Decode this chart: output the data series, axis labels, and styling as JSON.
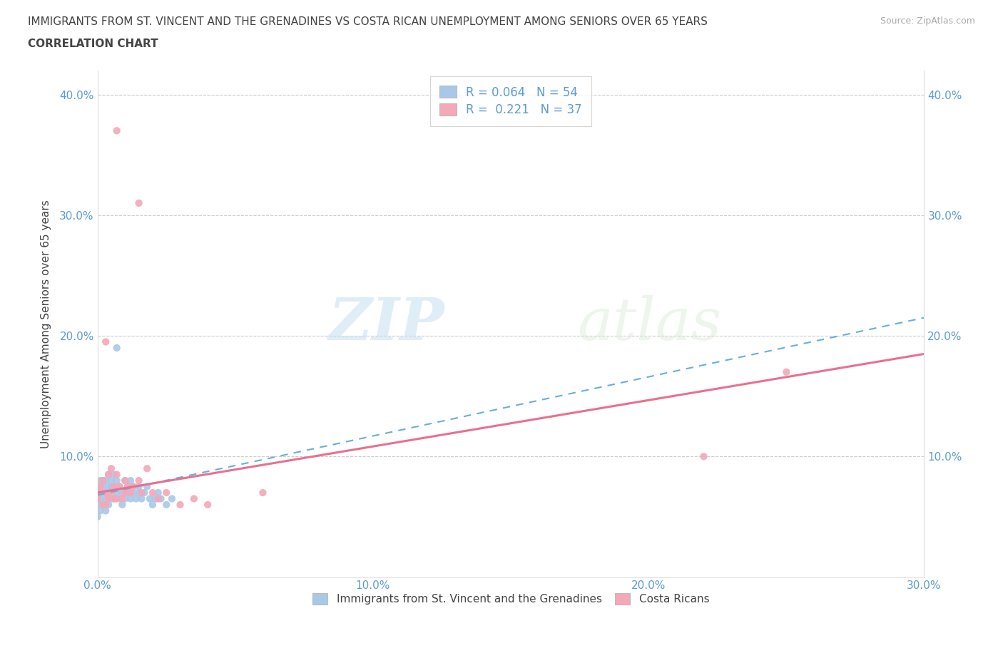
{
  "title_line1": "IMMIGRANTS FROM ST. VINCENT AND THE GRENADINES VS COSTA RICAN UNEMPLOYMENT AMONG SENIORS OVER 65 YEARS",
  "title_line2": "CORRELATION CHART",
  "source_text": "Source: ZipAtlas.com",
  "ylabel": "Unemployment Among Seniors over 65 years",
  "xlim": [
    0.0,
    0.3
  ],
  "ylim": [
    0.0,
    0.42
  ],
  "xticks": [
    0.0,
    0.1,
    0.2,
    0.3
  ],
  "yticks": [
    0.0,
    0.1,
    0.2,
    0.3,
    0.4
  ],
  "xtick_labels": [
    "0.0%",
    "10.0%",
    "20.0%",
    "30.0%"
  ],
  "ytick_labels": [
    "",
    "10.0%",
    "20.0%",
    "30.0%",
    "40.0%"
  ],
  "series1_label": "Immigrants from St. Vincent and the Grenadines",
  "series2_label": "Costa Ricans",
  "R1": 0.064,
  "N1": 54,
  "R2": 0.221,
  "N2": 37,
  "color1": "#a8c8e8",
  "color2": "#f4a8b8",
  "line1_color": "#6aaed6",
  "line2_color": "#e87090",
  "title_color": "#444444",
  "axis_color": "#5b9bd5",
  "source_color": "#aaaaaa",
  "blue_x": [
    0.0,
    0.0,
    0.0,
    0.001,
    0.001,
    0.001,
    0.001,
    0.001,
    0.002,
    0.002,
    0.002,
    0.002,
    0.003,
    0.003,
    0.003,
    0.003,
    0.004,
    0.004,
    0.004,
    0.004,
    0.005,
    0.005,
    0.005,
    0.006,
    0.006,
    0.006,
    0.007,
    0.007,
    0.007,
    0.008,
    0.008,
    0.009,
    0.009,
    0.01,
    0.01,
    0.011,
    0.011,
    0.012,
    0.012,
    0.013,
    0.013,
    0.014,
    0.015,
    0.015,
    0.016,
    0.017,
    0.018,
    0.019,
    0.02,
    0.021,
    0.022,
    0.023,
    0.025,
    0.027
  ],
  "blue_y": [
    0.05,
    0.06,
    0.065,
    0.055,
    0.065,
    0.07,
    0.075,
    0.08,
    0.06,
    0.07,
    0.075,
    0.08,
    0.055,
    0.065,
    0.07,
    0.08,
    0.06,
    0.07,
    0.075,
    0.085,
    0.065,
    0.075,
    0.08,
    0.065,
    0.075,
    0.085,
    0.07,
    0.08,
    0.19,
    0.065,
    0.075,
    0.06,
    0.07,
    0.065,
    0.08,
    0.07,
    0.075,
    0.065,
    0.08,
    0.07,
    0.075,
    0.065,
    0.07,
    0.075,
    0.065,
    0.07,
    0.075,
    0.065,
    0.06,
    0.065,
    0.07,
    0.065,
    0.06,
    0.065
  ],
  "pink_x": [
    0.0,
    0.001,
    0.001,
    0.002,
    0.002,
    0.003,
    0.003,
    0.003,
    0.004,
    0.004,
    0.005,
    0.005,
    0.006,
    0.006,
    0.007,
    0.007,
    0.008,
    0.009,
    0.01,
    0.01,
    0.011,
    0.012,
    0.013,
    0.015,
    0.016,
    0.018,
    0.02,
    0.022,
    0.025,
    0.03,
    0.035,
    0.04,
    0.06,
    0.22,
    0.25,
    0.015,
    0.007
  ],
  "pink_y": [
    0.065,
    0.07,
    0.075,
    0.06,
    0.08,
    0.06,
    0.07,
    0.195,
    0.065,
    0.085,
    0.07,
    0.09,
    0.065,
    0.075,
    0.065,
    0.085,
    0.075,
    0.065,
    0.07,
    0.08,
    0.075,
    0.07,
    0.075,
    0.08,
    0.07,
    0.09,
    0.07,
    0.065,
    0.07,
    0.06,
    0.065,
    0.06,
    0.07,
    0.1,
    0.17,
    0.31,
    0.37
  ],
  "line1_x0": 0.0,
  "line1_x1": 0.3,
  "line1_y0": 0.068,
  "line1_y1": 0.215,
  "line2_x0": 0.0,
  "line2_x1": 0.3,
  "line2_y0": 0.07,
  "line2_y1": 0.185
}
